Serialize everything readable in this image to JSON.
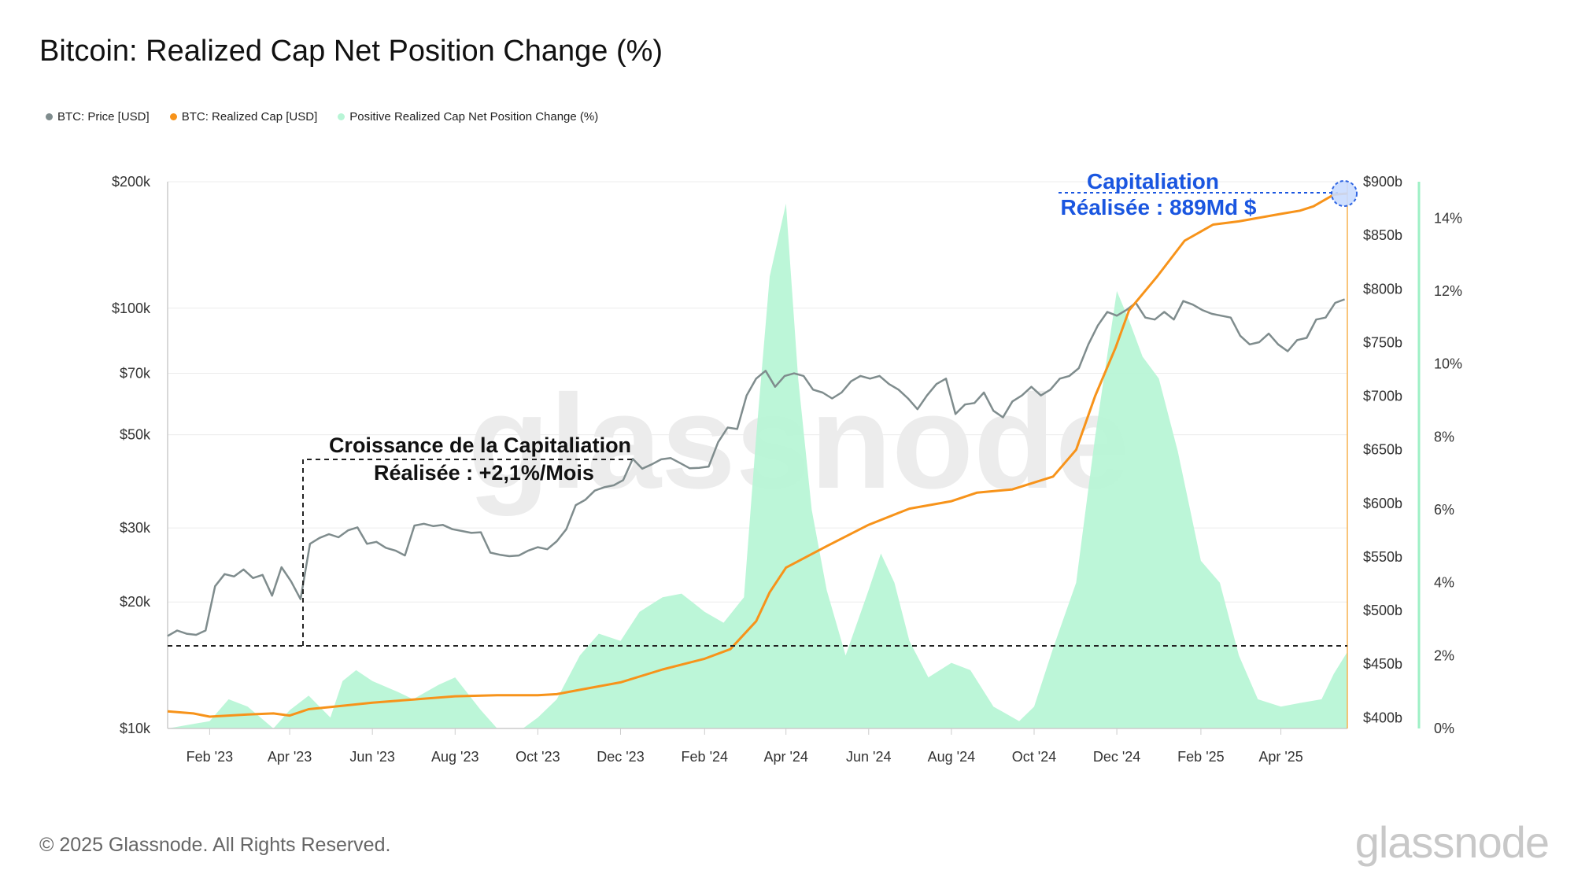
{
  "title": "Bitcoin: Realized Cap Net Position Change (%)",
  "footer": "© 2025 Glassnode. All Rights Reserved.",
  "brand": "glassnode",
  "watermark": "glassnode",
  "colors": {
    "price": "#7f8c8d",
    "realized_cap": "#f7931a",
    "positive_change": "#b8f5d6",
    "annotation": "#1a56e0"
  },
  "chart_data": {
    "type": "line",
    "legend_placement": "top-left",
    "x_ticks": [
      "Feb '23",
      "Apr '23",
      "Jun '23",
      "Aug '23",
      "Oct '23",
      "Dec '23",
      "Feb '24",
      "Apr '24",
      "Jun '24",
      "Aug '24",
      "Oct '24",
      "Dec '24",
      "Feb '25",
      "Apr '25"
    ],
    "x_tick_dates": [
      "2023-02-01",
      "2023-04-01",
      "2023-06-01",
      "2023-08-01",
      "2023-10-01",
      "2023-12-01",
      "2024-02-01",
      "2024-04-01",
      "2024-06-01",
      "2024-08-01",
      "2024-10-01",
      "2024-12-01",
      "2025-02-01",
      "2025-04-01"
    ],
    "x_range": [
      "2023-01-01",
      "2025-05-20"
    ],
    "y_left": {
      "label": "BTC: Price [USD]",
      "scale": "log",
      "range": [
        10000,
        200000
      ],
      "ticks": [
        10000,
        20000,
        30000,
        50000,
        70000,
        100000,
        200000
      ],
      "tick_labels": [
        "$10k",
        "$20k",
        "$30k",
        "$50k",
        "$70k",
        "$100k",
        "$200k"
      ]
    },
    "y_right1": {
      "label": "BTC: Realized Cap [USD]",
      "range": [
        390,
        900
      ],
      "ticks": [
        400,
        450,
        500,
        550,
        600,
        650,
        700,
        750,
        800,
        850,
        900
      ],
      "tick_labels": [
        "$400b",
        "$450b",
        "$500b",
        "$550b",
        "$600b",
        "$650b",
        "$700b",
        "$750b",
        "$800b",
        "$850b",
        "$900b"
      ]
    },
    "y_right2": {
      "label": "Positive Realized Cap Net Position Change (%)",
      "range": [
        0,
        15
      ],
      "ticks": [
        0,
        2,
        4,
        6,
        8,
        10,
        12,
        14
      ],
      "tick_labels": [
        "0%",
        "2%",
        "4%",
        "6%",
        "8%",
        "10%",
        "12%",
        "14%"
      ]
    },
    "series": [
      {
        "name": "BTC: Price [USD]",
        "axis": "left",
        "color": "#7f8c8d",
        "points": [
          [
            "2023-01-01",
            16600
          ],
          [
            "2023-01-08",
            17100
          ],
          [
            "2023-01-15",
            16800
          ],
          [
            "2023-01-22",
            16700
          ],
          [
            "2023-01-29",
            17100
          ],
          [
            "2023-02-05",
            21800
          ],
          [
            "2023-02-12",
            23300
          ],
          [
            "2023-02-19",
            23000
          ],
          [
            "2023-02-26",
            23900
          ],
          [
            "2023-03-05",
            22800
          ],
          [
            "2023-03-12",
            23200
          ],
          [
            "2023-03-19",
            20700
          ],
          [
            "2023-03-26",
            24200
          ],
          [
            "2023-04-02",
            22400
          ],
          [
            "2023-04-09",
            20300
          ],
          [
            "2023-04-16",
            27500
          ],
          [
            "2023-04-23",
            28400
          ],
          [
            "2023-04-30",
            29000
          ],
          [
            "2023-05-07",
            28500
          ],
          [
            "2023-05-14",
            29600
          ],
          [
            "2023-05-21",
            30100
          ],
          [
            "2023-05-28",
            27500
          ],
          [
            "2023-06-04",
            27800
          ],
          [
            "2023-06-11",
            26900
          ],
          [
            "2023-06-18",
            26500
          ],
          [
            "2023-06-25",
            25800
          ],
          [
            "2023-07-02",
            30400
          ],
          [
            "2023-07-09",
            30700
          ],
          [
            "2023-07-16",
            30300
          ],
          [
            "2023-07-23",
            30500
          ],
          [
            "2023-07-30",
            29800
          ],
          [
            "2023-08-06",
            29500
          ],
          [
            "2023-08-13",
            29200
          ],
          [
            "2023-08-20",
            29300
          ],
          [
            "2023-08-27",
            26200
          ],
          [
            "2023-09-03",
            25900
          ],
          [
            "2023-09-10",
            25700
          ],
          [
            "2023-09-17",
            25800
          ],
          [
            "2023-09-24",
            26500
          ],
          [
            "2023-10-01",
            27000
          ],
          [
            "2023-10-08",
            26700
          ],
          [
            "2023-10-15",
            27900
          ],
          [
            "2023-10-22",
            29800
          ],
          [
            "2023-10-29",
            34000
          ],
          [
            "2023-11-05",
            35000
          ],
          [
            "2023-11-12",
            36800
          ],
          [
            "2023-11-19",
            37500
          ],
          [
            "2023-11-26",
            37900
          ],
          [
            "2023-12-03",
            39000
          ],
          [
            "2023-12-10",
            43800
          ],
          [
            "2023-12-17",
            41500
          ],
          [
            "2023-12-24",
            42500
          ],
          [
            "2023-12-31",
            43700
          ],
          [
            "2024-01-07",
            44000
          ],
          [
            "2024-01-14",
            42800
          ],
          [
            "2024-01-21",
            41600
          ],
          [
            "2024-01-28",
            41700
          ],
          [
            "2024-02-04",
            42000
          ],
          [
            "2024-02-11",
            48000
          ],
          [
            "2024-02-18",
            52000
          ],
          [
            "2024-02-25",
            51600
          ],
          [
            "2024-03-03",
            62000
          ],
          [
            "2024-03-10",
            68000
          ],
          [
            "2024-03-17",
            71000
          ],
          [
            "2024-03-24",
            65000
          ],
          [
            "2024-03-31",
            69000
          ],
          [
            "2024-04-07",
            70000
          ],
          [
            "2024-04-14",
            69000
          ],
          [
            "2024-04-21",
            64000
          ],
          [
            "2024-04-28",
            63000
          ],
          [
            "2024-05-05",
            61000
          ],
          [
            "2024-05-12",
            63000
          ],
          [
            "2024-05-19",
            67000
          ],
          [
            "2024-05-26",
            69000
          ],
          [
            "2024-06-02",
            68000
          ],
          [
            "2024-06-09",
            69000
          ],
          [
            "2024-06-16",
            66000
          ],
          [
            "2024-06-23",
            64000
          ],
          [
            "2024-06-30",
            61000
          ],
          [
            "2024-07-07",
            57500
          ],
          [
            "2024-07-14",
            62000
          ],
          [
            "2024-07-21",
            66000
          ],
          [
            "2024-07-28",
            68000
          ],
          [
            "2024-08-04",
            56000
          ],
          [
            "2024-08-11",
            59000
          ],
          [
            "2024-08-18",
            59500
          ],
          [
            "2024-08-25",
            63000
          ],
          [
            "2024-09-01",
            57000
          ],
          [
            "2024-09-08",
            55000
          ],
          [
            "2024-09-15",
            60000
          ],
          [
            "2024-09-22",
            62000
          ],
          [
            "2024-09-29",
            65000
          ],
          [
            "2024-10-06",
            62000
          ],
          [
            "2024-10-13",
            64000
          ],
          [
            "2024-10-20",
            68000
          ],
          [
            "2024-10-27",
            69000
          ],
          [
            "2024-11-03",
            72000
          ],
          [
            "2024-11-10",
            82000
          ],
          [
            "2024-11-17",
            91000
          ],
          [
            "2024-11-24",
            98000
          ],
          [
            "2024-12-01",
            96000
          ],
          [
            "2024-12-08",
            99000
          ],
          [
            "2024-12-15",
            103000
          ],
          [
            "2024-12-22",
            95000
          ],
          [
            "2024-12-29",
            94000
          ],
          [
            "2025-01-05",
            98000
          ],
          [
            "2025-01-12",
            94000
          ],
          [
            "2025-01-19",
            104000
          ],
          [
            "2025-01-26",
            102000
          ],
          [
            "2025-02-02",
            99000
          ],
          [
            "2025-02-09",
            97000
          ],
          [
            "2025-02-16",
            96000
          ],
          [
            "2025-02-23",
            95000
          ],
          [
            "2025-03-02",
            86000
          ],
          [
            "2025-03-09",
            82000
          ],
          [
            "2025-03-16",
            83000
          ],
          [
            "2025-03-23",
            87000
          ],
          [
            "2025-03-30",
            82000
          ],
          [
            "2025-04-06",
            79000
          ],
          [
            "2025-04-13",
            84000
          ],
          [
            "2025-04-20",
            85000
          ],
          [
            "2025-04-27",
            94000
          ],
          [
            "2025-05-04",
            95000
          ],
          [
            "2025-05-11",
            103000
          ],
          [
            "2025-05-18",
            105000
          ]
        ]
      },
      {
        "name": "BTC: Realized Cap [USD]",
        "axis": "right1",
        "color": "#f7931a",
        "points": [
          [
            "2023-01-01",
            406
          ],
          [
            "2023-01-20",
            404
          ],
          [
            "2023-02-01",
            401
          ],
          [
            "2023-02-15",
            402
          ],
          [
            "2023-03-01",
            403
          ],
          [
            "2023-03-20",
            404
          ],
          [
            "2023-04-01",
            402
          ],
          [
            "2023-04-15",
            408
          ],
          [
            "2023-05-01",
            410
          ],
          [
            "2023-06-01",
            414
          ],
          [
            "2023-07-01",
            417
          ],
          [
            "2023-08-01",
            420
          ],
          [
            "2023-09-01",
            421
          ],
          [
            "2023-10-01",
            421
          ],
          [
            "2023-10-15",
            422
          ],
          [
            "2023-11-01",
            426
          ],
          [
            "2023-12-01",
            433
          ],
          [
            "2024-01-01",
            445
          ],
          [
            "2024-02-01",
            455
          ],
          [
            "2024-02-20",
            464
          ],
          [
            "2024-03-10",
            490
          ],
          [
            "2024-03-20",
            517
          ],
          [
            "2024-04-01",
            540
          ],
          [
            "2024-05-01",
            560
          ],
          [
            "2024-06-01",
            580
          ],
          [
            "2024-07-01",
            595
          ],
          [
            "2024-08-01",
            602
          ],
          [
            "2024-08-20",
            610
          ],
          [
            "2024-09-15",
            613
          ],
          [
            "2024-10-15",
            625
          ],
          [
            "2024-11-01",
            650
          ],
          [
            "2024-11-15",
            700
          ],
          [
            "2024-11-30",
            745
          ],
          [
            "2024-12-10",
            780
          ],
          [
            "2024-12-31",
            812
          ],
          [
            "2025-01-20",
            845
          ],
          [
            "2025-02-10",
            860
          ],
          [
            "2025-03-01",
            863
          ],
          [
            "2025-04-01",
            870
          ],
          [
            "2025-04-15",
            873
          ],
          [
            "2025-04-25",
            877
          ],
          [
            "2025-05-10",
            888
          ],
          [
            "2025-05-20",
            889
          ]
        ]
      },
      {
        "name": "Positive Realized Cap Net Position Change (%)",
        "axis": "right2",
        "color": "#b8f5d6",
        "render": "area",
        "points": [
          [
            "2023-01-01",
            0
          ],
          [
            "2023-02-01",
            0.2
          ],
          [
            "2023-02-15",
            0.8
          ],
          [
            "2023-03-01",
            0.6
          ],
          [
            "2023-03-20",
            0
          ],
          [
            "2023-04-01",
            0.5
          ],
          [
            "2023-04-15",
            0.9
          ],
          [
            "2023-05-01",
            0.3
          ],
          [
            "2023-05-10",
            1.3
          ],
          [
            "2023-05-20",
            1.6
          ],
          [
            "2023-06-01",
            1.3
          ],
          [
            "2023-06-20",
            1.0
          ],
          [
            "2023-07-01",
            0.8
          ],
          [
            "2023-07-20",
            1.2
          ],
          [
            "2023-08-01",
            1.4
          ],
          [
            "2023-08-20",
            0.5
          ],
          [
            "2023-09-01",
            0
          ],
          [
            "2023-09-20",
            0
          ],
          [
            "2023-10-01",
            0.3
          ],
          [
            "2023-10-15",
            0.8
          ],
          [
            "2023-11-01",
            2.0
          ],
          [
            "2023-11-15",
            2.6
          ],
          [
            "2023-12-01",
            2.4
          ],
          [
            "2023-12-15",
            3.2
          ],
          [
            "2024-01-01",
            3.6
          ],
          [
            "2024-01-15",
            3.7
          ],
          [
            "2024-02-01",
            3.2
          ],
          [
            "2024-02-15",
            2.9
          ],
          [
            "2024-03-01",
            3.6
          ],
          [
            "2024-03-10",
            8.0
          ],
          [
            "2024-03-20",
            12.4
          ],
          [
            "2024-04-01",
            14.4
          ],
          [
            "2024-04-10",
            9.6
          ],
          [
            "2024-04-20",
            6.0
          ],
          [
            "2024-05-01",
            3.8
          ],
          [
            "2024-05-15",
            2.0
          ],
          [
            "2024-06-01",
            3.8
          ],
          [
            "2024-06-10",
            4.8
          ],
          [
            "2024-06-20",
            4.0
          ],
          [
            "2024-07-01",
            2.4
          ],
          [
            "2024-07-15",
            1.4
          ],
          [
            "2024-08-01",
            1.8
          ],
          [
            "2024-08-15",
            1.6
          ],
          [
            "2024-09-01",
            0.6
          ],
          [
            "2024-09-20",
            0.2
          ],
          [
            "2024-10-01",
            0.6
          ],
          [
            "2024-10-15",
            2.2
          ],
          [
            "2024-11-01",
            4.0
          ],
          [
            "2024-11-15",
            8.0
          ],
          [
            "2024-12-01",
            12.0
          ],
          [
            "2024-12-10",
            11.2
          ],
          [
            "2024-12-20",
            10.2
          ],
          [
            "2025-01-01",
            9.6
          ],
          [
            "2025-01-15",
            7.6
          ],
          [
            "2025-02-01",
            4.6
          ],
          [
            "2025-02-15",
            4.0
          ],
          [
            "2025-03-01",
            2.0
          ],
          [
            "2025-03-15",
            0.8
          ],
          [
            "2025-04-01",
            0.6
          ],
          [
            "2025-04-15",
            0.7
          ],
          [
            "2025-05-01",
            0.8
          ],
          [
            "2025-05-10",
            1.5
          ],
          [
            "2025-05-20",
            2.1
          ]
        ]
      }
    ],
    "annotations": [
      {
        "line1": "Croissance de la Capitaliation",
        "line2": "Réalisée : +2,1%/Mois"
      },
      {
        "line1": "Capitaliation",
        "line2": "Réalisée : 889Md $"
      }
    ]
  }
}
